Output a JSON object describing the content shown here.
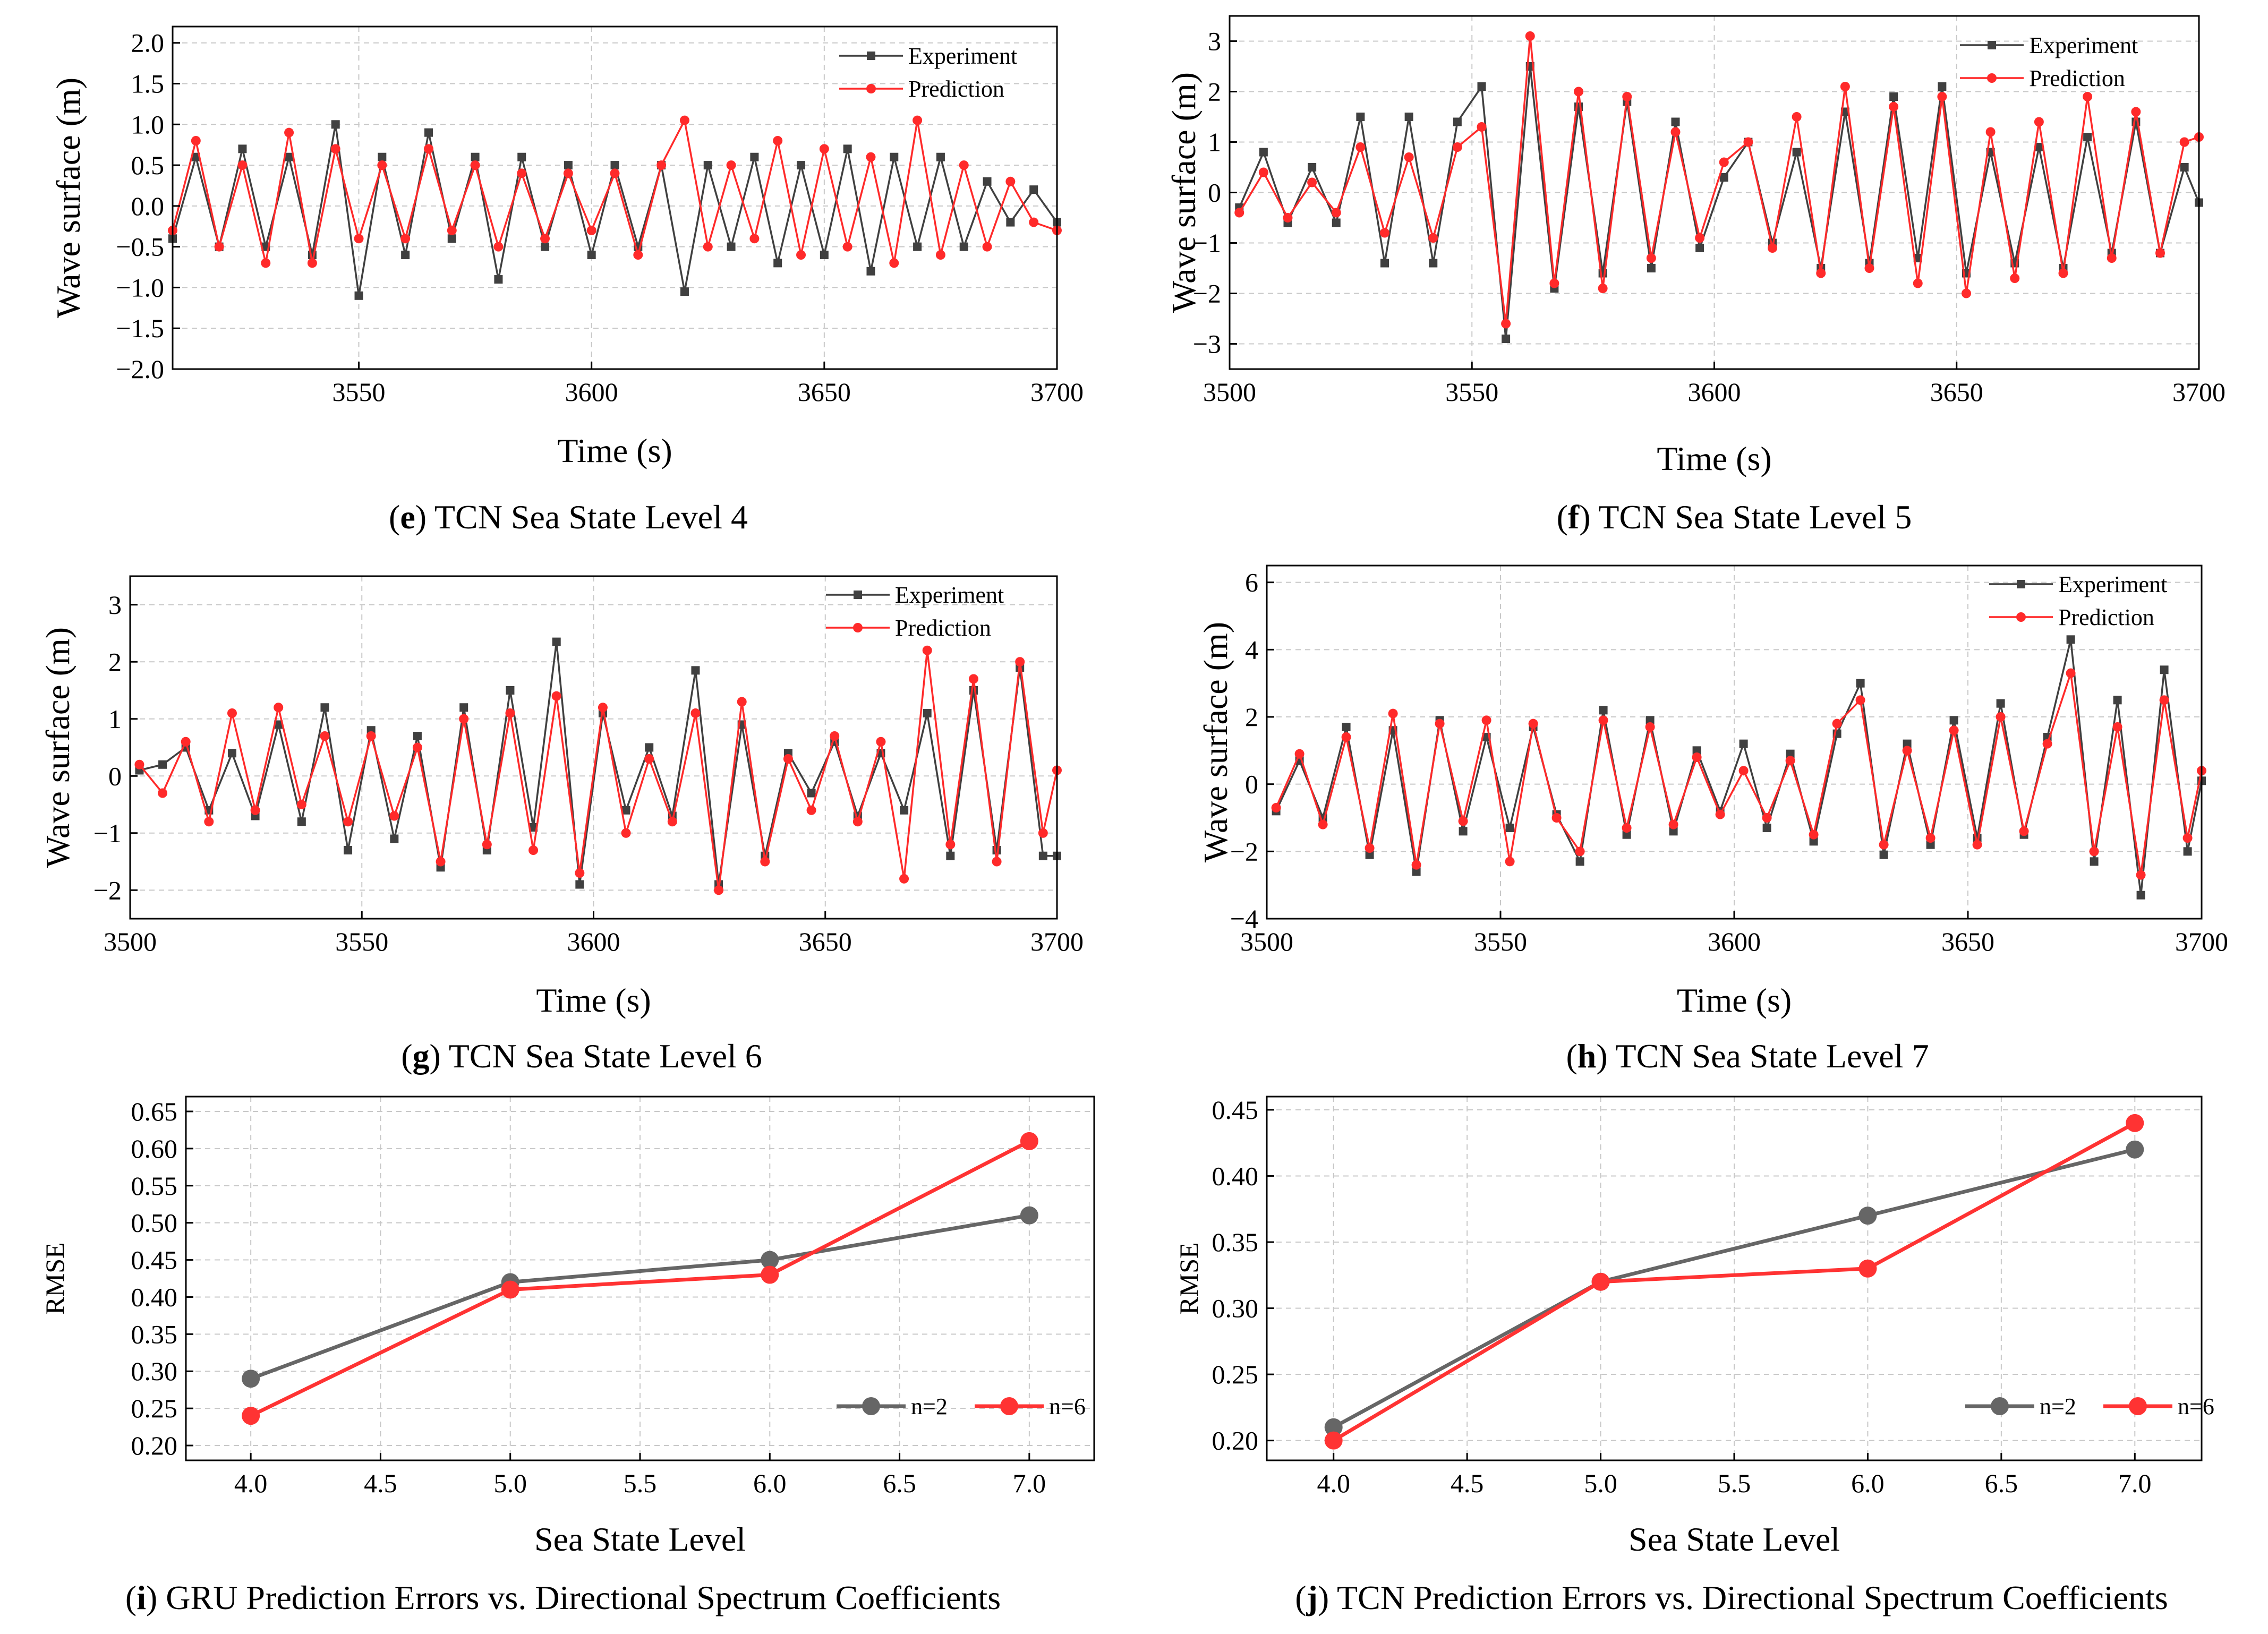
{
  "colors": {
    "experiment": "#404040",
    "prediction": "#ff2a2a",
    "n2": "#666666",
    "n6": "#ff3333"
  },
  "chart_data": [
    {
      "id": "e",
      "type": "line",
      "caption_letter": "e",
      "caption_text": ") TCN Sea State Level 4",
      "xlabel": "Time (s)",
      "ylabel": "Wave surface (m)",
      "xlim": [
        3510,
        3700
      ],
      "ylim": [
        -2.0,
        2.2
      ],
      "xticks": [
        3550,
        3600,
        3650,
        3700
      ],
      "xtick_labels": [
        "3550",
        "3600",
        "3650",
        "3700"
      ],
      "yticks": [
        -2.0,
        -1.5,
        -1.0,
        -0.5,
        0.0,
        0.5,
        1.0,
        1.5,
        2.0
      ],
      "ytick_labels": [
        "−2.0",
        "−1.5",
        "−1.0",
        "−0.5",
        "0.0",
        "0.5",
        "1.0",
        "1.5",
        "2.0"
      ],
      "legend": [
        "Experiment",
        "Prediction"
      ],
      "series": [
        {
          "name": "Experiment",
          "x": [
            3510,
            3515,
            3520,
            3525,
            3530,
            3535,
            3540,
            3545,
            3550,
            3555,
            3560,
            3565,
            3570,
            3575,
            3580,
            3585,
            3590,
            3595,
            3600,
            3605,
            3610,
            3615,
            3620,
            3625,
            3630,
            3635,
            3640,
            3645,
            3650,
            3655,
            3660,
            3665,
            3670,
            3675,
            3680,
            3685,
            3690,
            3695,
            3700
          ],
          "y": [
            -0.4,
            0.6,
            -0.5,
            0.7,
            -0.5,
            0.6,
            -0.6,
            1.0,
            -1.1,
            0.6,
            -0.6,
            0.9,
            -0.4,
            0.6,
            -0.9,
            0.6,
            -0.5,
            0.5,
            -0.6,
            0.5,
            -0.5,
            0.5,
            -1.05,
            0.5,
            -0.5,
            0.6,
            -0.7,
            0.5,
            -0.6,
            0.7,
            -0.8,
            0.6,
            -0.5,
            0.6,
            -0.5,
            0.3,
            -0.2,
            0.2,
            -0.2
          ]
        },
        {
          "name": "Prediction",
          "x": [
            3510,
            3515,
            3520,
            3525,
            3530,
            3535,
            3540,
            3545,
            3550,
            3555,
            3560,
            3565,
            3570,
            3575,
            3580,
            3585,
            3590,
            3595,
            3600,
            3605,
            3610,
            3615,
            3620,
            3625,
            3630,
            3635,
            3640,
            3645,
            3650,
            3655,
            3660,
            3665,
            3670,
            3675,
            3680,
            3685,
            3690,
            3695,
            3700
          ],
          "y": [
            -0.3,
            0.8,
            -0.5,
            0.5,
            -0.7,
            0.9,
            -0.7,
            0.7,
            -0.4,
            0.5,
            -0.4,
            0.7,
            -0.3,
            0.5,
            -0.5,
            0.4,
            -0.4,
            0.4,
            -0.3,
            0.4,
            -0.6,
            0.5,
            1.05,
            -0.5,
            0.5,
            -0.4,
            0.8,
            -0.6,
            0.7,
            -0.5,
            0.6,
            -0.7,
            1.05,
            -0.6,
            0.5,
            -0.5,
            0.3,
            -0.2,
            -0.3
          ]
        }
      ]
    },
    {
      "id": "f",
      "type": "line",
      "caption_letter": "f",
      "caption_text": ") TCN Sea State Level 5",
      "xlabel": "Time (s)",
      "ylabel": "Wave surface (m)",
      "xlim": [
        3500,
        3700
      ],
      "ylim": [
        -3.5,
        3.5
      ],
      "xticks": [
        3500,
        3550,
        3600,
        3650,
        3700
      ],
      "xtick_labels": [
        "3500",
        "3550",
        "3600",
        "3650",
        "3700"
      ],
      "yticks": [
        -3,
        -2,
        -1,
        0,
        1,
        2,
        3
      ],
      "ytick_labels": [
        "−3",
        "−2",
        "−1",
        "0",
        "1",
        "2",
        "3"
      ],
      "legend": [
        "Experiment",
        "Prediction"
      ],
      "series": [
        {
          "name": "Experiment",
          "x": [
            3502,
            3507,
            3512,
            3517,
            3522,
            3527,
            3532,
            3537,
            3542,
            3547,
            3552,
            3557,
            3562,
            3567,
            3572,
            3577,
            3582,
            3587,
            3592,
            3597,
            3602,
            3607,
            3612,
            3617,
            3622,
            3627,
            3632,
            3637,
            3642,
            3647,
            3652,
            3657,
            3662,
            3667,
            3672,
            3677,
            3682,
            3687,
            3692,
            3697,
            3700
          ],
          "y": [
            -0.3,
            0.8,
            -0.6,
            0.5,
            -0.6,
            1.5,
            -1.4,
            1.5,
            -1.4,
            1.4,
            2.1,
            -2.9,
            2.5,
            -1.9,
            1.7,
            -1.6,
            1.8,
            -1.5,
            1.4,
            -1.1,
            0.3,
            1.0,
            -1.0,
            0.8,
            -1.5,
            1.6,
            -1.4,
            1.9,
            -1.3,
            2.1,
            -1.6,
            0.8,
            -1.4,
            0.9,
            -1.5,
            1.1,
            -1.2,
            1.4,
            -1.2,
            0.5,
            -0.2
          ]
        },
        {
          "name": "Prediction",
          "x": [
            3502,
            3507,
            3512,
            3517,
            3522,
            3527,
            3532,
            3537,
            3542,
            3547,
            3552,
            3557,
            3562,
            3567,
            3572,
            3577,
            3582,
            3587,
            3592,
            3597,
            3602,
            3607,
            3612,
            3617,
            3622,
            3627,
            3632,
            3637,
            3642,
            3647,
            3652,
            3657,
            3662,
            3667,
            3672,
            3677,
            3682,
            3687,
            3692,
            3697,
            3700
          ],
          "y": [
            -0.4,
            0.4,
            -0.5,
            0.2,
            -0.4,
            0.9,
            -0.8,
            0.7,
            -0.9,
            0.9,
            1.3,
            -2.6,
            3.1,
            -1.8,
            2.0,
            -1.9,
            1.9,
            -1.3,
            1.2,
            -0.9,
            0.6,
            1.0,
            -1.1,
            1.5,
            -1.6,
            2.1,
            -1.5,
            1.7,
            -1.8,
            1.9,
            -2.0,
            1.2,
            -1.7,
            1.4,
            -1.6,
            1.9,
            -1.3,
            1.6,
            -1.2,
            1.0,
            1.1
          ]
        }
      ]
    },
    {
      "id": "g",
      "type": "line",
      "caption_letter": "g",
      "caption_text": ") TCN Sea State Level 6",
      "xlabel": "Time (s)",
      "ylabel": "Wave surface (m)",
      "xlim": [
        3500,
        3700
      ],
      "ylim": [
        -2.5,
        3.5
      ],
      "xticks": [
        3500,
        3550,
        3600,
        3650,
        3700
      ],
      "xtick_labels": [
        "3500",
        "3550",
        "3600",
        "3650",
        "3700"
      ],
      "yticks": [
        -2,
        -1,
        0,
        1,
        2,
        3
      ],
      "ytick_labels": [
        "−2",
        "−1",
        "0",
        "1",
        "2",
        "3"
      ],
      "legend": [
        "Experiment",
        "Prediction"
      ],
      "series": [
        {
          "name": "Experiment",
          "x": [
            3502,
            3507,
            3512,
            3517,
            3522,
            3527,
            3532,
            3537,
            3542,
            3547,
            3552,
            3557,
            3562,
            3567,
            3572,
            3577,
            3582,
            3587,
            3592,
            3597,
            3602,
            3607,
            3612,
            3617,
            3622,
            3627,
            3632,
            3637,
            3642,
            3647,
            3652,
            3657,
            3662,
            3667,
            3672,
            3677,
            3682,
            3687,
            3692,
            3697,
            3700
          ],
          "y": [
            0.1,
            0.2,
            0.5,
            -0.6,
            0.4,
            -0.7,
            0.9,
            -0.8,
            1.2,
            -1.3,
            0.8,
            -1.1,
            0.7,
            -1.6,
            1.2,
            -1.3,
            1.5,
            -0.9,
            2.35,
            -1.9,
            1.1,
            -0.6,
            0.5,
            -0.7,
            1.85,
            -1.9,
            0.9,
            -1.4,
            0.4,
            -0.3,
            0.6,
            -0.7,
            0.4,
            -0.6,
            1.1,
            -1.4,
            1.5,
            -1.3,
            1.9,
            -1.4,
            -1.4
          ]
        },
        {
          "name": "Prediction",
          "x": [
            3502,
            3507,
            3512,
            3517,
            3522,
            3527,
            3532,
            3537,
            3542,
            3547,
            3552,
            3557,
            3562,
            3567,
            3572,
            3577,
            3582,
            3587,
            3592,
            3597,
            3602,
            3607,
            3612,
            3617,
            3622,
            3627,
            3632,
            3637,
            3642,
            3647,
            3652,
            3657,
            3662,
            3667,
            3672,
            3677,
            3682,
            3687,
            3692,
            3697,
            3700
          ],
          "y": [
            0.2,
            -0.3,
            0.6,
            -0.8,
            1.1,
            -0.6,
            1.2,
            -0.5,
            0.7,
            -0.8,
            0.7,
            -0.7,
            0.5,
            -1.5,
            1.0,
            -1.2,
            1.1,
            -1.3,
            1.4,
            -1.7,
            1.2,
            -1.0,
            0.3,
            -0.8,
            1.1,
            -2.0,
            1.3,
            -1.5,
            0.3,
            -0.6,
            0.7,
            -0.8,
            0.6,
            -1.8,
            2.2,
            -1.2,
            1.7,
            -1.5,
            2.0,
            -1.0,
            0.1
          ]
        }
      ]
    },
    {
      "id": "h",
      "type": "line",
      "caption_letter": "h",
      "caption_text": ") TCN Sea State Level 7",
      "xlabel": "Time (s)",
      "ylabel": "Wave surface (m)",
      "xlim": [
        3500,
        3700
      ],
      "ylim": [
        -4,
        6.5
      ],
      "xticks": [
        3500,
        3550,
        3600,
        3650,
        3700
      ],
      "xtick_labels": [
        "3500",
        "3550",
        "3600",
        "3650",
        "3700"
      ],
      "yticks": [
        -4,
        -2,
        0,
        2,
        4,
        6
      ],
      "ytick_labels": [
        "−4",
        "−2",
        "0",
        "2",
        "4",
        "6"
      ],
      "legend": [
        "Experiment",
        "Prediction"
      ],
      "series": [
        {
          "name": "Experiment",
          "x": [
            3502,
            3507,
            3512,
            3517,
            3522,
            3527,
            3532,
            3537,
            3542,
            3547,
            3552,
            3557,
            3562,
            3567,
            3572,
            3577,
            3582,
            3587,
            3592,
            3597,
            3602,
            3607,
            3612,
            3617,
            3622,
            3627,
            3632,
            3637,
            3642,
            3647,
            3652,
            3657,
            3662,
            3667,
            3672,
            3677,
            3682,
            3687,
            3692,
            3697,
            3700
          ],
          "y": [
            -0.8,
            0.7,
            -1.0,
            1.7,
            -2.1,
            1.6,
            -2.6,
            1.9,
            -1.4,
            1.4,
            -1.3,
            1.7,
            -0.9,
            -2.3,
            2.2,
            -1.5,
            1.9,
            -1.4,
            1.0,
            -0.8,
            1.2,
            -1.3,
            0.9,
            -1.7,
            1.5,
            3.0,
            -2.1,
            1.2,
            -1.8,
            1.9,
            -1.6,
            2.4,
            -1.5,
            1.4,
            4.3,
            -2.3,
            2.5,
            -3.3,
            3.4,
            -2.0,
            0.1
          ]
        },
        {
          "name": "Prediction",
          "x": [
            3502,
            3507,
            3512,
            3517,
            3522,
            3527,
            3532,
            3537,
            3542,
            3547,
            3552,
            3557,
            3562,
            3567,
            3572,
            3577,
            3582,
            3587,
            3592,
            3597,
            3602,
            3607,
            3612,
            3617,
            3622,
            3627,
            3632,
            3637,
            3642,
            3647,
            3652,
            3657,
            3662,
            3667,
            3672,
            3677,
            3682,
            3687,
            3692,
            3697,
            3700
          ],
          "y": [
            -0.7,
            0.9,
            -1.2,
            1.4,
            -1.9,
            2.1,
            -2.4,
            1.8,
            -1.1,
            1.9,
            -2.3,
            1.8,
            -1.0,
            -2.0,
            1.9,
            -1.3,
            1.7,
            -1.2,
            0.8,
            -0.9,
            0.4,
            -1.0,
            0.7,
            -1.5,
            1.8,
            2.5,
            -1.8,
            1.0,
            -1.6,
            1.6,
            -1.8,
            2.0,
            -1.4,
            1.2,
            3.3,
            -2.0,
            1.7,
            -2.7,
            2.5,
            -1.6,
            0.4
          ]
        }
      ]
    },
    {
      "id": "i",
      "type": "line",
      "caption_letter": "i",
      "caption_text": ") GRU Prediction Errors vs. Directional Spectrum Coefficients",
      "xlabel": "Sea State Level",
      "ylabel": "RMSE",
      "xlim": [
        3.75,
        7.25
      ],
      "ylim": [
        0.18,
        0.67
      ],
      "xticks": [
        4.0,
        4.5,
        5.0,
        5.5,
        6.0,
        6.5,
        7.0
      ],
      "xtick_labels": [
        "4.0",
        "4.5",
        "5.0",
        "5.5",
        "6.0",
        "6.5",
        "7.0"
      ],
      "yticks": [
        0.2,
        0.25,
        0.3,
        0.35,
        0.4,
        0.45,
        0.5,
        0.55,
        0.6,
        0.65
      ],
      "ytick_labels": [
        "0.20",
        "0.25",
        "0.30",
        "0.35",
        "0.40",
        "0.45",
        "0.50",
        "0.55",
        "0.60",
        "0.65"
      ],
      "legend": [
        "n=2",
        "n=6"
      ],
      "series": [
        {
          "name": "n=2",
          "x": [
            4.0,
            5.0,
            6.0,
            7.0
          ],
          "y": [
            0.29,
            0.42,
            0.45,
            0.51
          ]
        },
        {
          "name": "n=6",
          "x": [
            4.0,
            5.0,
            6.0,
            7.0
          ],
          "y": [
            0.24,
            0.41,
            0.43,
            0.61
          ]
        }
      ]
    },
    {
      "id": "j",
      "type": "line",
      "caption_letter": "j",
      "caption_text": ") TCN Prediction Errors vs. Directional Spectrum Coefficients",
      "xlabel": "Sea State Level",
      "ylabel": "RMSE",
      "xlim": [
        3.75,
        7.25
      ],
      "ylim": [
        0.185,
        0.46
      ],
      "xticks": [
        4.0,
        4.5,
        5.0,
        5.5,
        6.0,
        6.5,
        7.0
      ],
      "xtick_labels": [
        "4.0",
        "4.5",
        "5.0",
        "5.5",
        "6.0",
        "6.5",
        "7.0"
      ],
      "yticks": [
        0.2,
        0.25,
        0.3,
        0.35,
        0.4,
        0.45
      ],
      "ytick_labels": [
        "0.20",
        "0.25",
        "0.30",
        "0.35",
        "0.40",
        "0.45"
      ],
      "legend": [
        "n=2",
        "n=6"
      ],
      "series": [
        {
          "name": "n=2",
          "x": [
            4.0,
            5.0,
            6.0,
            7.0
          ],
          "y": [
            0.21,
            0.32,
            0.37,
            0.42
          ]
        },
        {
          "name": "n=6",
          "x": [
            4.0,
            5.0,
            6.0,
            7.0
          ],
          "y": [
            0.2,
            0.32,
            0.33,
            0.44
          ]
        }
      ]
    }
  ]
}
